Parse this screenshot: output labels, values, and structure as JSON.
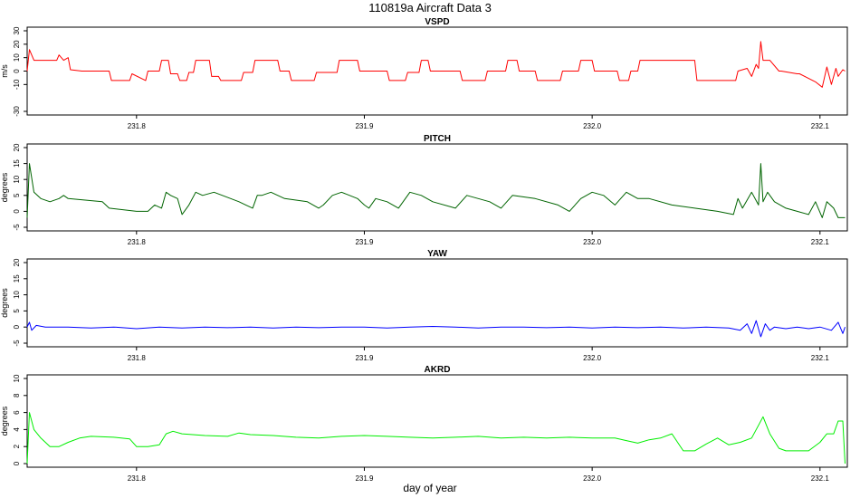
{
  "figure": {
    "title": "110819a   Aircraft Data 3",
    "xlabel": "day of year"
  },
  "chart_data": [
    {
      "type": "line",
      "title": "VSPD",
      "ylabel": "m/s",
      "color": "#ff0000",
      "xlim": [
        231.752,
        232.112
      ],
      "ylim": [
        -30,
        30
      ],
      "yticks": [
        -30,
        -10,
        0,
        10,
        20,
        30
      ],
      "xticks": [
        231.8,
        231.9,
        232.0,
        232.1
      ],
      "x": [
        231.752,
        231.753,
        231.755,
        231.765,
        231.766,
        231.768,
        231.77,
        231.771,
        231.776,
        231.788,
        231.789,
        231.797,
        231.798,
        231.804,
        231.805,
        231.81,
        231.811,
        231.814,
        231.815,
        231.818,
        231.819,
        231.822,
        231.823,
        231.825,
        231.826,
        231.832,
        231.833,
        231.836,
        231.837,
        231.846,
        231.847,
        231.851,
        231.852,
        231.862,
        231.863,
        231.867,
        231.868,
        231.878,
        231.879,
        231.888,
        231.889,
        231.897,
        231.898,
        231.91,
        231.911,
        231.918,
        231.919,
        231.924,
        231.925,
        231.928,
        231.929,
        231.942,
        231.943,
        231.953,
        231.954,
        231.962,
        231.963,
        231.967,
        231.968,
        231.975,
        231.976,
        231.986,
        231.987,
        231.994,
        231.995,
        232.0,
        232.001,
        232.011,
        232.012,
        232.016,
        232.017,
        232.02,
        232.021,
        232.045,
        232.046,
        232.063,
        232.064,
        232.068,
        232.07,
        232.072,
        232.073,
        232.074,
        232.075,
        232.078,
        232.082,
        232.083,
        232.09,
        232.091,
        232.098,
        232.101,
        232.103,
        232.105,
        232.107,
        232.108,
        232.11,
        232.111
      ],
      "y": [
        0,
        16,
        8,
        8,
        12,
        8,
        10,
        1,
        0,
        0,
        -7,
        -7,
        -2,
        -7,
        0,
        0,
        8,
        8,
        -2,
        -2,
        -7,
        -7,
        -1,
        -1,
        8,
        8,
        -4,
        -4,
        -7,
        -7,
        -1,
        -1,
        8,
        8,
        0,
        0,
        -7,
        -7,
        -1,
        -1,
        8,
        8,
        0,
        0,
        -7,
        -7,
        -1,
        -1,
        8,
        8,
        0,
        0,
        -7,
        -7,
        0,
        0,
        8,
        8,
        0,
        0,
        -7,
        -7,
        0,
        0,
        8,
        8,
        0,
        0,
        -7,
        -7,
        0,
        0,
        8,
        8,
        -7,
        -7,
        0,
        2,
        -4,
        5,
        2,
        22,
        8,
        8,
        0,
        0,
        -2,
        -2,
        -8,
        -12,
        3,
        -10,
        2,
        -4,
        1,
        0
      ]
    },
    {
      "type": "line",
      "title": "PITCH",
      "ylabel": "degrees",
      "color": "#006400",
      "xlim": [
        231.752,
        232.112
      ],
      "ylim": [
        -5,
        20
      ],
      "yticks": [
        -5,
        0,
        5,
        10,
        15,
        20
      ],
      "xticks": [
        231.8,
        231.9,
        232.0,
        232.1
      ],
      "x": [
        231.752,
        231.753,
        231.755,
        231.758,
        231.762,
        231.766,
        231.768,
        231.77,
        231.785,
        231.788,
        231.8,
        231.805,
        231.808,
        231.811,
        231.813,
        231.815,
        231.818,
        231.82,
        231.823,
        231.826,
        231.829,
        231.834,
        231.845,
        231.848,
        231.851,
        231.853,
        231.855,
        231.859,
        231.865,
        231.875,
        231.88,
        231.882,
        231.886,
        231.89,
        231.897,
        231.9,
        231.902,
        231.905,
        231.91,
        231.915,
        231.92,
        231.925,
        231.93,
        231.94,
        231.945,
        231.95,
        231.955,
        231.96,
        231.965,
        231.975,
        231.985,
        231.99,
        231.995,
        232.0,
        232.005,
        232.01,
        232.015,
        232.02,
        232.025,
        232.035,
        232.045,
        232.055,
        232.062,
        232.064,
        232.066,
        232.07,
        232.073,
        232.074,
        232.075,
        232.077,
        232.08,
        232.085,
        232.09,
        232.095,
        232.098,
        232.101,
        232.103,
        232.106,
        232.108,
        232.11,
        232.111
      ],
      "y": [
        -2,
        15,
        6,
        4,
        3,
        4,
        5,
        4,
        3,
        1,
        0,
        0,
        2,
        1,
        6,
        5,
        4,
        -1,
        2,
        6,
        5,
        6,
        3,
        2,
        1,
        5,
        5,
        6,
        4,
        3,
        1,
        2,
        5,
        6,
        4,
        2,
        1,
        4,
        3,
        1,
        6,
        5,
        3,
        1,
        5,
        4,
        3,
        1,
        5,
        4,
        2,
        0,
        4,
        6,
        5,
        2,
        6,
        4,
        4,
        2,
        1,
        0,
        -1,
        4,
        1,
        6,
        2,
        15,
        3,
        6,
        3,
        1,
        0,
        -1,
        3,
        -2,
        3,
        1,
        -2,
        -2,
        -2
      ]
    },
    {
      "type": "line",
      "title": "YAW",
      "ylabel": "degrees",
      "color": "#0000ff",
      "xlim": [
        231.752,
        232.112
      ],
      "ylim": [
        -5,
        20
      ],
      "yticks": [
        -5,
        0,
        5,
        10,
        15,
        20
      ],
      "xticks": [
        231.8,
        231.9,
        232.0,
        232.1
      ],
      "x": [
        231.752,
        231.753,
        231.754,
        231.756,
        231.76,
        231.77,
        231.78,
        231.79,
        231.8,
        231.81,
        231.82,
        231.83,
        231.84,
        231.85,
        231.86,
        231.87,
        231.88,
        231.89,
        231.9,
        231.91,
        231.92,
        231.93,
        231.94,
        231.95,
        231.96,
        231.97,
        231.98,
        231.99,
        232.0,
        232.01,
        232.02,
        232.03,
        232.04,
        232.05,
        232.06,
        232.065,
        232.068,
        232.07,
        232.072,
        232.074,
        232.076,
        232.078,
        232.08,
        232.085,
        232.09,
        232.095,
        232.1,
        232.105,
        232.108,
        232.11,
        232.111
      ],
      "y": [
        0,
        1.5,
        -1,
        0.5,
        0,
        0,
        -0.3,
        0,
        -0.5,
        0,
        -0.3,
        0,
        -0.2,
        0,
        -0.3,
        0,
        -0.2,
        0,
        0,
        -0.3,
        0,
        0.2,
        0,
        -0.3,
        0,
        0,
        -0.2,
        0,
        -0.3,
        0,
        -0.2,
        0,
        -0.3,
        0,
        -0.3,
        -1,
        1,
        -2,
        2,
        -3,
        1,
        -1,
        0,
        -0.5,
        0,
        -0.5,
        0,
        -1,
        1.5,
        -2,
        0
      ]
    },
    {
      "type": "line",
      "title": "AKRD",
      "ylabel": "degrees",
      "color": "#00ee00",
      "xlim": [
        231.752,
        232.112
      ],
      "ylim": [
        0,
        10
      ],
      "yticks": [
        0,
        2,
        4,
        6,
        8,
        10
      ],
      "xticks": [
        231.8,
        231.9,
        232.0,
        232.1
      ],
      "x": [
        231.752,
        231.753,
        231.755,
        231.758,
        231.762,
        231.766,
        231.77,
        231.775,
        231.78,
        231.79,
        231.797,
        231.8,
        231.805,
        231.81,
        231.813,
        231.816,
        231.82,
        231.83,
        231.84,
        231.845,
        231.85,
        231.86,
        231.87,
        231.88,
        231.89,
        231.9,
        231.91,
        231.92,
        231.93,
        231.94,
        231.95,
        231.96,
        231.97,
        231.98,
        231.99,
        232.0,
        232.01,
        232.015,
        232.02,
        232.025,
        232.03,
        232.035,
        232.04,
        232.045,
        232.05,
        232.055,
        232.06,
        232.065,
        232.07,
        232.073,
        232.075,
        232.078,
        232.082,
        232.085,
        232.09,
        232.095,
        232.1,
        232.103,
        232.106,
        232.108,
        232.11,
        232.111
      ],
      "y": [
        0,
        6,
        4,
        3,
        2,
        2,
        2.5,
        3,
        3.2,
        3.1,
        2.9,
        2,
        2,
        2.2,
        3.5,
        3.8,
        3.5,
        3.3,
        3.2,
        3.6,
        3.4,
        3.3,
        3.1,
        3.0,
        3.2,
        3.3,
        3.2,
        3.1,
        3.0,
        3.1,
        3.2,
        3.0,
        3.1,
        3.0,
        3.1,
        3.0,
        3.0,
        2.7,
        2.4,
        2.8,
        3.0,
        3.5,
        1.5,
        1.5,
        2.3,
        3.0,
        2.2,
        2.5,
        3.0,
        4.5,
        5.5,
        3.5,
        1.8,
        1.5,
        1.5,
        1.5,
        2.5,
        3.5,
        3.5,
        5.0,
        5.0,
        0
      ]
    }
  ]
}
